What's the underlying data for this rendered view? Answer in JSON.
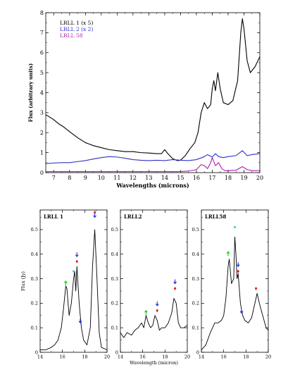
{
  "chart_data": [
    {
      "type": "line",
      "xlabel": "Wavelengths (microns)",
      "ylabel": "Flux (arbitrary units)",
      "xlim": [
        6.5,
        20
      ],
      "ylim": [
        0,
        8
      ],
      "xticks": [
        7,
        8,
        9,
        10,
        11,
        12,
        13,
        14,
        15,
        16,
        17,
        18,
        19,
        20
      ],
      "yticks": [
        0,
        1,
        2,
        3,
        4,
        5,
        6,
        7,
        8
      ],
      "legend_position": "top-left",
      "series": [
        {
          "name": "LRLL 1 (x 5)",
          "color": "#000000",
          "x": [
            6.5,
            6.8,
            7.0,
            7.3,
            7.6,
            8.0,
            8.5,
            9.0,
            9.5,
            10.0,
            10.5,
            11.0,
            11.5,
            12.0,
            12.5,
            13.0,
            13.5,
            13.8,
            14.0,
            14.2,
            14.5,
            14.8,
            15.0,
            15.3,
            15.6,
            15.9,
            16.1,
            16.3,
            16.5,
            16.7,
            16.9,
            17.0,
            17.1,
            17.2,
            17.35,
            17.5,
            17.7,
            18.0,
            18.3,
            18.6,
            18.8,
            18.9,
            19.0,
            19.2,
            19.4,
            19.7,
            20.0
          ],
          "y": [
            2.9,
            2.75,
            2.65,
            2.45,
            2.3,
            2.05,
            1.75,
            1.5,
            1.35,
            1.25,
            1.15,
            1.1,
            1.05,
            1.05,
            1.0,
            0.98,
            0.95,
            0.95,
            1.15,
            0.95,
            0.7,
            0.6,
            0.62,
            0.85,
            1.2,
            1.5,
            2.0,
            3.0,
            3.5,
            3.2,
            3.4,
            4.2,
            4.6,
            4.1,
            5.0,
            4.2,
            3.5,
            3.4,
            3.6,
            4.6,
            7.0,
            7.7,
            7.2,
            5.6,
            5.0,
            5.3,
            5.8
          ]
        },
        {
          "name": "LRLL 2 (x 2)",
          "color": "#3030c8",
          "x": [
            6.5,
            7.0,
            7.5,
            8.0,
            8.5,
            9.0,
            9.5,
            10.0,
            10.5,
            11.0,
            11.5,
            12.0,
            12.5,
            13.0,
            13.5,
            14.0,
            14.5,
            15.0,
            15.5,
            16.0,
            16.5,
            16.7,
            17.0,
            17.2,
            17.4,
            17.7,
            18.0,
            18.5,
            18.9,
            19.2,
            19.5,
            20.0
          ],
          "y": [
            0.45,
            0.48,
            0.5,
            0.5,
            0.55,
            0.6,
            0.68,
            0.75,
            0.8,
            0.78,
            0.72,
            0.65,
            0.62,
            0.6,
            0.62,
            0.6,
            0.65,
            0.62,
            0.6,
            0.65,
            0.8,
            0.9,
            0.78,
            0.95,
            0.8,
            0.75,
            0.8,
            0.85,
            1.1,
            0.85,
            0.9,
            0.95
          ]
        },
        {
          "name": "LRLL 58",
          "color": "#b020b0",
          "x": [
            6.5,
            7.0,
            8.0,
            9.0,
            10.0,
            11.0,
            12.0,
            13.0,
            14.0,
            15.0,
            15.5,
            16.0,
            16.3,
            16.5,
            16.7,
            16.9,
            17.0,
            17.2,
            17.4,
            17.6,
            17.8,
            18.0,
            18.5,
            18.9,
            19.2,
            19.5,
            20.0
          ],
          "y": [
            0.05,
            0.05,
            0.05,
            0.05,
            0.05,
            0.05,
            0.05,
            0.05,
            0.05,
            0.05,
            0.08,
            0.15,
            0.4,
            0.35,
            0.2,
            0.5,
            0.75,
            0.35,
            0.5,
            0.2,
            0.1,
            0.1,
            0.12,
            0.3,
            0.15,
            0.1,
            0.1
          ]
        }
      ]
    },
    {
      "type": "line",
      "title": "LRLL 1",
      "xlabel": "",
      "ylabel": "Flux (Jy)",
      "xlim": [
        14,
        20
      ],
      "ylim": [
        0,
        0.58
      ],
      "xticks": [
        14,
        16,
        18,
        20
      ],
      "yticks": [
        0,
        0.1,
        0.2,
        0.3,
        0.4,
        0.5
      ],
      "series": [
        {
          "name": "",
          "color": "#000000",
          "x": [
            14.0,
            14.5,
            15.0,
            15.3,
            15.6,
            15.9,
            16.1,
            16.3,
            16.4,
            16.6,
            16.8,
            17.0,
            17.1,
            17.2,
            17.3,
            17.5,
            17.7,
            17.9,
            18.2,
            18.5,
            18.7,
            18.9,
            19.1,
            19.3,
            19.5,
            20.0
          ],
          "y": [
            0.01,
            0.01,
            0.02,
            0.03,
            0.05,
            0.1,
            0.18,
            0.27,
            0.26,
            0.15,
            0.2,
            0.3,
            0.33,
            0.25,
            0.35,
            0.2,
            0.1,
            0.05,
            0.03,
            0.1,
            0.35,
            0.5,
            0.3,
            0.08,
            0.02,
            0.01
          ]
        }
      ],
      "markers": [
        {
          "x": 16.3,
          "y": 0.29,
          "kind": "green-arrow"
        },
        {
          "x": 17.0,
          "y": 0.33,
          "kind": "cyan-dot"
        },
        {
          "x": 17.3,
          "y": 0.37,
          "kind": "red-diamond"
        },
        {
          "x": 17.3,
          "y": 0.39,
          "kind": "blue-arrow"
        },
        {
          "x": 17.6,
          "y": 0.12,
          "kind": "blue-arrow"
        },
        {
          "x": 18.9,
          "y": 0.57,
          "kind": "red-diamond"
        },
        {
          "x": 18.9,
          "y": 0.55,
          "kind": "blue-arrow"
        }
      ]
    },
    {
      "type": "line",
      "title": "LRLL2",
      "xlabel": "Wavelength (micron)",
      "ylabel": "",
      "xlim": [
        14,
        20
      ],
      "ylim": [
        0,
        0.58
      ],
      "xticks": [
        14,
        16,
        18,
        20
      ],
      "yticks": [
        0,
        0.1,
        0.2,
        0.3,
        0.4,
        0.5
      ],
      "series": [
        {
          "name": "",
          "color": "#000000",
          "x": [
            14.0,
            14.3,
            14.6,
            15.0,
            15.3,
            15.6,
            15.9,
            16.1,
            16.3,
            16.5,
            16.7,
            16.9,
            17.1,
            17.3,
            17.5,
            17.7,
            18.0,
            18.3,
            18.6,
            18.8,
            19.0,
            19.2,
            19.4,
            19.7,
            20.0
          ],
          "y": [
            0.08,
            0.06,
            0.08,
            0.07,
            0.09,
            0.1,
            0.12,
            0.1,
            0.15,
            0.12,
            0.1,
            0.11,
            0.15,
            0.13,
            0.09,
            0.1,
            0.1,
            0.12,
            0.16,
            0.22,
            0.2,
            0.12,
            0.1,
            0.1,
            0.11
          ]
        }
      ],
      "markers": [
        {
          "x": 16.3,
          "y": 0.17,
          "kind": "green-arrow"
        },
        {
          "x": 17.3,
          "y": 0.17,
          "kind": "red-diamond"
        },
        {
          "x": 17.3,
          "y": 0.19,
          "kind": "blue-arrow"
        },
        {
          "x": 18.9,
          "y": 0.26,
          "kind": "red-diamond"
        },
        {
          "x": 18.9,
          "y": 0.28,
          "kind": "blue-arrow"
        }
      ]
    },
    {
      "type": "line",
      "title": "LRLL58",
      "xlabel": "",
      "ylabel": "",
      "xlim": [
        14,
        20
      ],
      "ylim": [
        0,
        0.58
      ],
      "xticks": [
        14,
        16,
        18,
        20
      ],
      "yticks": [
        0,
        0.1,
        0.2,
        0.3,
        0.4,
        0.5
      ],
      "series": [
        {
          "name": "",
          "color": "#000000",
          "x": [
            14.0,
            14.4,
            14.8,
            15.2,
            15.5,
            15.8,
            16.0,
            16.2,
            16.4,
            16.5,
            16.7,
            16.9,
            17.0,
            17.1,
            17.2,
            17.3,
            17.5,
            17.7,
            17.9,
            18.2,
            18.5,
            18.8,
            19.0,
            19.2,
            19.5,
            19.8,
            20.0
          ],
          "y": [
            0.01,
            0.03,
            0.08,
            0.12,
            0.12,
            0.13,
            0.15,
            0.22,
            0.35,
            0.38,
            0.28,
            0.3,
            0.47,
            0.4,
            0.3,
            0.32,
            0.2,
            0.15,
            0.13,
            0.12,
            0.14,
            0.2,
            0.24,
            0.2,
            0.15,
            0.1,
            0.09
          ]
        }
      ],
      "markers": [
        {
          "x": 16.4,
          "y": 0.41,
          "kind": "green-arrow"
        },
        {
          "x": 17.0,
          "y": 0.51,
          "kind": "cyan-dot"
        },
        {
          "x": 17.3,
          "y": 0.35,
          "kind": "blue-arrow"
        },
        {
          "x": 17.3,
          "y": 0.33,
          "kind": "red-diamond"
        },
        {
          "x": 17.6,
          "y": 0.16,
          "kind": "blue-arrow"
        },
        {
          "x": 18.9,
          "y": 0.26,
          "kind": "red-diamond"
        }
      ]
    }
  ]
}
